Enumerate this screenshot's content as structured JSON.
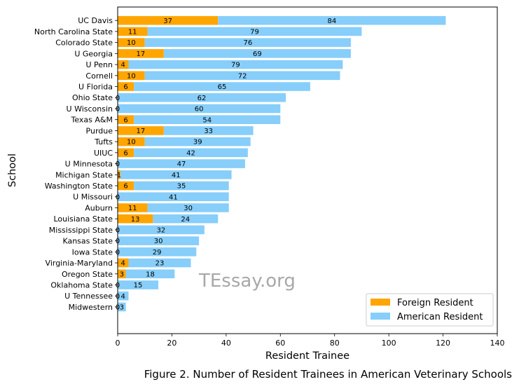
{
  "chart_data": {
    "type": "bar",
    "orientation": "horizontal",
    "stacked": true,
    "categories": [
      "UC Davis",
      "North Carolina State",
      "Colorado State",
      "U Georgia",
      "U Penn",
      "Cornell",
      "U Florida",
      "Ohio State",
      "U Wisconsin",
      "Texas A&M",
      "Purdue",
      "Tufts",
      "UIUC",
      "U Minnesota",
      "Michigan State",
      "Washington State",
      "U Missouri",
      "Auburn",
      "Louisiana State",
      "Mississippi State",
      "Kansas State",
      "Iowa State",
      "Virginia-Maryland",
      "Oregon State",
      "Oklahoma State",
      "U Tennessee",
      "Midwestern"
    ],
    "series": [
      {
        "name": "Foreign Resident",
        "color": "#ffa500",
        "values": [
          37,
          11,
          10,
          17,
          4,
          10,
          6,
          0,
          0,
          6,
          17,
          10,
          6,
          0,
          1,
          6,
          0,
          11,
          13,
          0,
          0,
          0,
          4,
          3,
          0,
          0,
          0
        ]
      },
      {
        "name": "American Resident",
        "color": "#87cefa",
        "values": [
          84,
          79,
          76,
          69,
          79,
          72,
          65,
          62,
          60,
          54,
          33,
          39,
          42,
          47,
          41,
          35,
          41,
          30,
          24,
          32,
          30,
          29,
          23,
          18,
          15,
          4,
          3
        ]
      }
    ],
    "xlabel": "Resident Trainee",
    "ylabel": "School",
    "xlim": [
      0,
      140
    ],
    "xticks": [
      0,
      20,
      40,
      60,
      80,
      100,
      120,
      140
    ],
    "grid": false,
    "legend_position": "lower-right"
  },
  "watermark": "TEssay.org",
  "caption": "Figure 2. Number of Resident Trainees in American Veterinary Schools"
}
